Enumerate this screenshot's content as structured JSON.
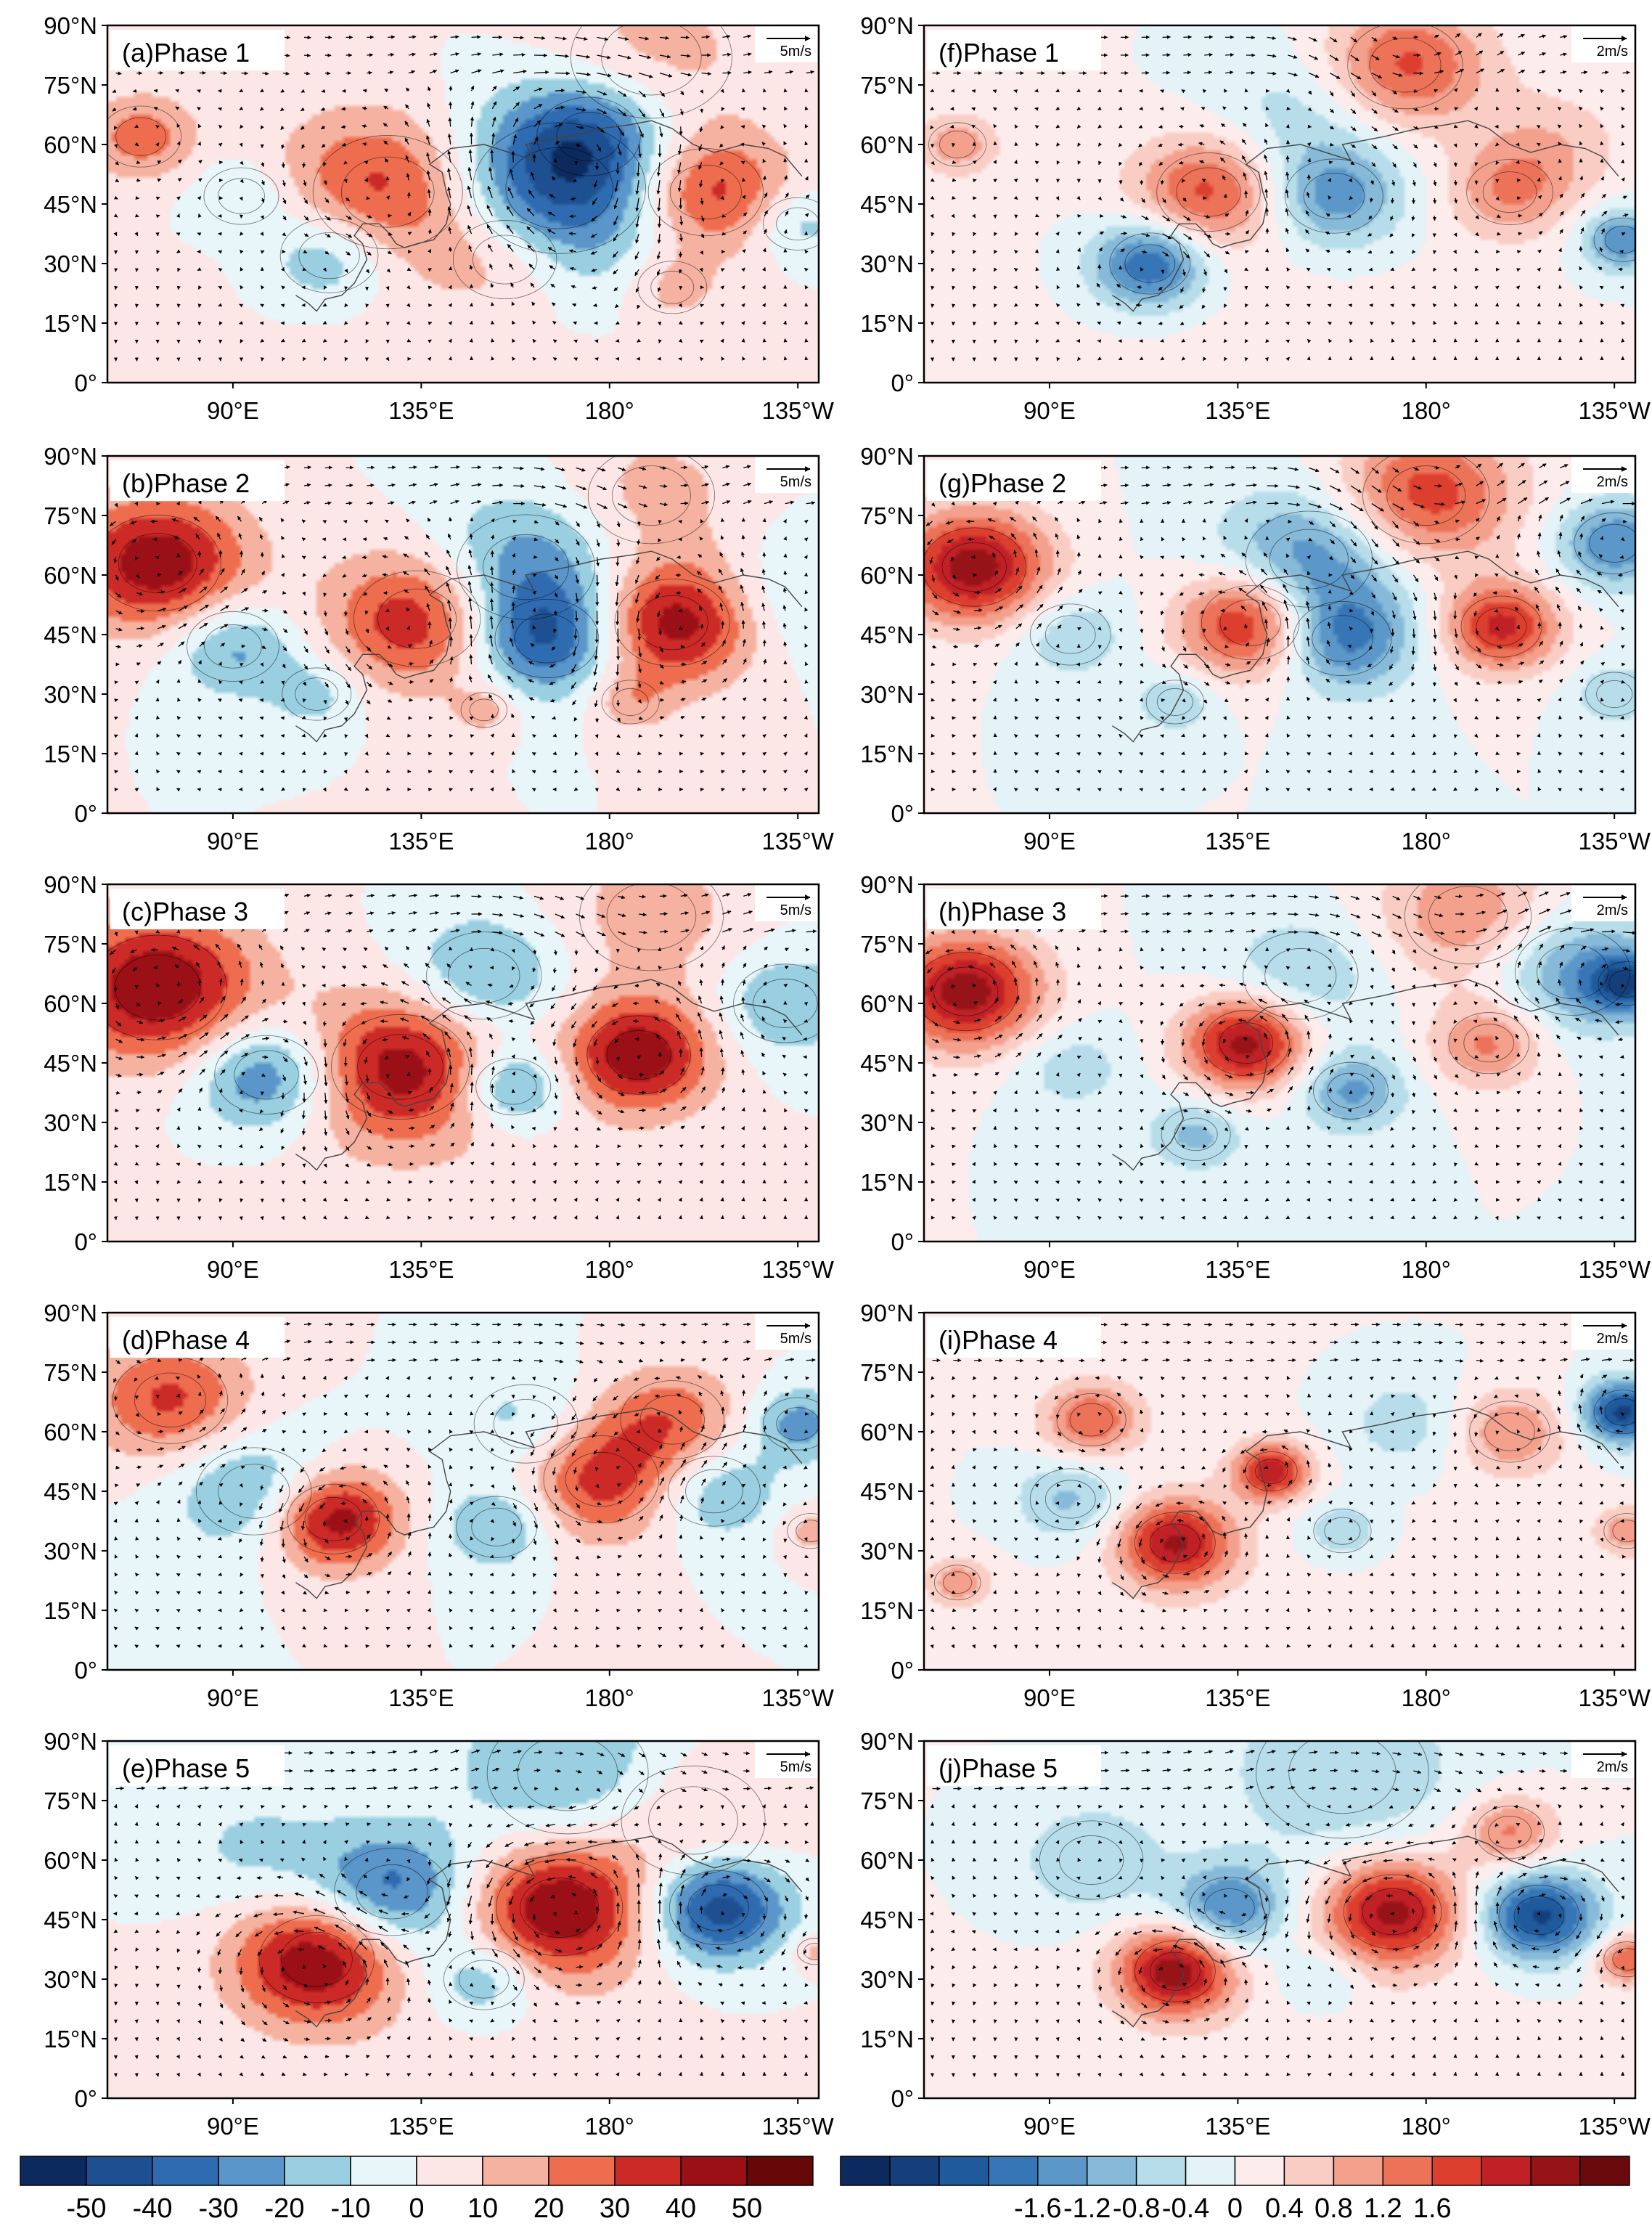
{
  "figure": {
    "columns": [
      {
        "vector_reference": "5m/s",
        "panels": [
          {
            "label": "(a)Phase 1"
          },
          {
            "label": "(b)Phase 2"
          },
          {
            "label": "(c)Phase 3"
          },
          {
            "label": "(d)Phase 4"
          },
          {
            "label": "(e)Phase 5"
          }
        ],
        "colorbar": {
          "colors": [
            "#0c2a5e",
            "#1d4f91",
            "#2f6bb0",
            "#5a96c9",
            "#99cfe0",
            "#e8f6fa",
            "#fde6e6",
            "#f6b2a0",
            "#ee6d4f",
            "#cc2a26",
            "#9b1016",
            "#660808"
          ],
          "tick_labels": [
            "-50",
            "-40",
            "-30",
            "-20",
            "-10",
            "0",
            "10",
            "20",
            "30",
            "40",
            "50"
          ]
        }
      },
      {
        "vector_reference": "2m/s",
        "panels": [
          {
            "label": "(f)Phase 1"
          },
          {
            "label": "(g)Phase 2"
          },
          {
            "label": "(h)Phase 3"
          },
          {
            "label": "(i)Phase 4"
          },
          {
            "label": "(j)Phase 5"
          }
        ],
        "colorbar": {
          "colors": [
            "#0c2a5e",
            "#153f7b",
            "#1f5a9c",
            "#3776b6",
            "#5b97c8",
            "#86bad8",
            "#b6dde9",
            "#e4f3f8",
            "#fdecec",
            "#f9cdc4",
            "#f3a08d",
            "#ec7258",
            "#dd3f2f",
            "#c02126",
            "#961318",
            "#6b0a0c"
          ],
          "tick_labels": [
            "-1.6",
            "-1.2",
            "-0.8",
            "-0.4",
            "0",
            "0.4",
            "0.8",
            "1.2",
            "1.6"
          ]
        }
      }
    ],
    "lat_labels": [
      "90°N",
      "75°N",
      "60°N",
      "45°N",
      "30°N",
      "15°N",
      "0°"
    ],
    "lon_labels": [
      "90°E",
      "135°E",
      "180°",
      "135°W"
    ],
    "anomaly_centers": {
      "col0": [
        [
          {
            "lon": 68,
            "lat": 62,
            "r": 14,
            "v": 0.5
          },
          {
            "lon": 92,
            "lat": 47,
            "r": 13,
            "v": -0.3
          },
          {
            "lon": 113,
            "lat": 32,
            "r": 17,
            "v": -0.55
          },
          {
            "lon": 127,
            "lat": 48,
            "r": 26,
            "v": 0.75
          },
          {
            "lon": 168,
            "lat": 49,
            "r": 30,
            "v": -0.95
          },
          {
            "lon": 203,
            "lat": 48,
            "r": 20,
            "v": 0.8
          },
          {
            "lon": 225,
            "lat": 40,
            "r": 12,
            "v": -0.35
          },
          {
            "lon": 155,
            "lat": 31,
            "r": 18,
            "v": 0.35
          },
          {
            "lon": 195,
            "lat": 24,
            "r": 12,
            "v": 0.3
          },
          {
            "lon": 190,
            "lat": 82,
            "r": 28,
            "v": 0.3
          },
          {
            "lon": 175,
            "lat": 62,
            "r": 18,
            "v": -0.45
          },
          {
            "lon": 140,
            "lat": 10,
            "r": 60,
            "v": 0.08
          }
        ],
        [
          {
            "lon": 72,
            "lat": 63,
            "r": 22,
            "v": 0.95
          },
          {
            "lon": 90,
            "lat": 42,
            "r": 16,
            "v": -0.5
          },
          {
            "lon": 134,
            "lat": 49,
            "r": 22,
            "v": 0.8
          },
          {
            "lon": 160,
            "lat": 62,
            "r": 24,
            "v": -0.55
          },
          {
            "lon": 165,
            "lat": 44,
            "r": 18,
            "v": -0.8
          },
          {
            "lon": 195,
            "lat": 48,
            "r": 20,
            "v": 0.95
          },
          {
            "lon": 190,
            "lat": 80,
            "r": 22,
            "v": 0.3
          },
          {
            "lon": 110,
            "lat": 30,
            "r": 12,
            "v": -0.3
          },
          {
            "lon": 150,
            "lat": 26,
            "r": 8,
            "v": 0.3
          },
          {
            "lon": 185,
            "lat": 28,
            "r": 10,
            "v": 0.3
          },
          {
            "lon": 225,
            "lat": 55,
            "r": 20,
            "v": -0.25
          }
        ],
        [
          {
            "lon": 72,
            "lat": 64,
            "r": 24,
            "v": 1.0
          },
          {
            "lon": 98,
            "lat": 42,
            "r": 18,
            "v": -0.7
          },
          {
            "lon": 130,
            "lat": 44,
            "r": 24,
            "v": 0.9
          },
          {
            "lon": 150,
            "lat": 67,
            "r": 20,
            "v": -0.5
          },
          {
            "lon": 157,
            "lat": 39,
            "r": 13,
            "v": -0.65
          },
          {
            "lon": 187,
            "lat": 47,
            "r": 18,
            "v": 0.95
          },
          {
            "lon": 190,
            "lat": 82,
            "r": 25,
            "v": 0.3
          },
          {
            "lon": 222,
            "lat": 60,
            "r": 18,
            "v": -0.4
          },
          {
            "lon": 140,
            "lat": 10,
            "r": 60,
            "v": 0.06
          }
        ],
        [
          {
            "lon": 75,
            "lat": 68,
            "r": 20,
            "v": 0.65
          },
          {
            "lon": 95,
            "lat": 45,
            "r": 20,
            "v": -0.5
          },
          {
            "lon": 114,
            "lat": 38,
            "r": 16,
            "v": 1.0
          },
          {
            "lon": 153,
            "lat": 36,
            "r": 14,
            "v": -0.45
          },
          {
            "lon": 160,
            "lat": 62,
            "r": 18,
            "v": -0.3
          },
          {
            "lon": 178,
            "lat": 48,
            "r": 20,
            "v": 0.7
          },
          {
            "lon": 195,
            "lat": 63,
            "r": 18,
            "v": 0.5
          },
          {
            "lon": 205,
            "lat": 45,
            "r": 16,
            "v": -0.45
          },
          {
            "lon": 225,
            "lat": 62,
            "r": 12,
            "v": -0.5
          },
          {
            "lon": 228,
            "lat": 35,
            "r": 8,
            "v": 0.3
          }
        ],
        [
          {
            "lon": 110,
            "lat": 35,
            "r": 20,
            "v": 1.0
          },
          {
            "lon": 128,
            "lat": 52,
            "r": 20,
            "v": -0.75
          },
          {
            "lon": 168,
            "lat": 48,
            "r": 22,
            "v": 1.0
          },
          {
            "lon": 206,
            "lat": 48,
            "r": 17,
            "v": -1.0
          },
          {
            "lon": 150,
            "lat": 30,
            "r": 14,
            "v": -0.45
          },
          {
            "lon": 170,
            "lat": 82,
            "r": 28,
            "v": -0.45
          },
          {
            "lon": 200,
            "lat": 70,
            "r": 25,
            "v": 0.3
          },
          {
            "lon": 95,
            "lat": 62,
            "r": 22,
            "v": -0.25
          },
          {
            "lon": 229,
            "lat": 37,
            "r": 6,
            "v": 0.3
          },
          {
            "lon": 140,
            "lat": 10,
            "r": 60,
            "v": 0.07
          }
        ]
      ],
      "col1": [
        [
          {
            "lon": 68,
            "lat": 60,
            "r": 10,
            "v": 0.4
          },
          {
            "lon": 128,
            "lat": 48,
            "r": 18,
            "v": 0.65
          },
          {
            "lon": 114,
            "lat": 30,
            "r": 14,
            "v": -0.8
          },
          {
            "lon": 158,
            "lat": 47,
            "r": 17,
            "v": -0.55
          },
          {
            "lon": 175,
            "lat": 80,
            "r": 20,
            "v": 0.65
          },
          {
            "lon": 200,
            "lat": 48,
            "r": 15,
            "v": 0.4
          },
          {
            "lon": 227,
            "lat": 36,
            "r": 10,
            "v": -0.6
          },
          {
            "lon": 150,
            "lat": 68,
            "r": 22,
            "v": -0.25
          },
          {
            "lon": 145,
            "lat": 8,
            "r": 60,
            "v": 0.06
          },
          {
            "lon": 210,
            "lat": 60,
            "r": 18,
            "v": 0.25
          }
        ],
        [
          {
            "lon": 72,
            "lat": 62,
            "r": 18,
            "v": 1.0
          },
          {
            "lon": 138,
            "lat": 48,
            "r": 17,
            "v": 0.9
          },
          {
            "lon": 160,
            "lat": 44,
            "r": 17,
            "v": -0.65
          },
          {
            "lon": 152,
            "lat": 64,
            "r": 22,
            "v": -0.6
          },
          {
            "lon": 198,
            "lat": 47,
            "r": 14,
            "v": 0.8
          },
          {
            "lon": 180,
            "lat": 80,
            "r": 22,
            "v": 0.7
          },
          {
            "lon": 225,
            "lat": 68,
            "r": 14,
            "v": -0.6
          },
          {
            "lon": 95,
            "lat": 45,
            "r": 14,
            "v": -0.3
          },
          {
            "lon": 120,
            "lat": 28,
            "r": 10,
            "v": -0.3
          },
          {
            "lon": 225,
            "lat": 30,
            "r": 10,
            "v": -0.3
          }
        ],
        [
          {
            "lon": 70,
            "lat": 63,
            "r": 18,
            "v": 1.0
          },
          {
            "lon": 137,
            "lat": 50,
            "r": 15,
            "v": 1.0
          },
          {
            "lon": 125,
            "lat": 27,
            "r": 12,
            "v": -0.35
          },
          {
            "lon": 162,
            "lat": 38,
            "r": 13,
            "v": -0.5
          },
          {
            "lon": 195,
            "lat": 50,
            "r": 14,
            "v": 0.5
          },
          {
            "lon": 190,
            "lat": 82,
            "r": 22,
            "v": 0.45
          },
          {
            "lon": 215,
            "lat": 68,
            "r": 20,
            "v": -0.5
          },
          {
            "lon": 228,
            "lat": 65,
            "r": 10,
            "v": -0.7
          },
          {
            "lon": 150,
            "lat": 67,
            "r": 20,
            "v": -0.3
          },
          {
            "lon": 95,
            "lat": 44,
            "r": 14,
            "v": -0.25
          }
        ],
        [
          {
            "lon": 120,
            "lat": 32,
            "r": 14,
            "v": 0.9
          },
          {
            "lon": 143,
            "lat": 50,
            "r": 9,
            "v": 0.85
          },
          {
            "lon": 100,
            "lat": 63,
            "r": 12,
            "v": 0.6
          },
          {
            "lon": 95,
            "lat": 43,
            "r": 14,
            "v": -0.35
          },
          {
            "lon": 200,
            "lat": 60,
            "r": 14,
            "v": 0.45
          },
          {
            "lon": 227,
            "lat": 65,
            "r": 10,
            "v": -0.95
          },
          {
            "lon": 228,
            "lat": 35,
            "r": 8,
            "v": 0.4
          },
          {
            "lon": 68,
            "lat": 22,
            "r": 8,
            "v": 0.4
          },
          {
            "lon": 160,
            "lat": 35,
            "r": 10,
            "v": -0.3
          },
          {
            "lon": 175,
            "lat": 62,
            "r": 16,
            "v": -0.25
          },
          {
            "lon": 150,
            "lat": 10,
            "r": 60,
            "v": 0.06
          }
        ],
        [
          {
            "lon": 120,
            "lat": 32,
            "r": 14,
            "v": 1.0
          },
          {
            "lon": 172,
            "lat": 47,
            "r": 17,
            "v": 0.95
          },
          {
            "lon": 207,
            "lat": 46,
            "r": 14,
            "v": -0.95
          },
          {
            "lon": 133,
            "lat": 48,
            "r": 14,
            "v": -0.65
          },
          {
            "lon": 160,
            "lat": 82,
            "r": 30,
            "v": -0.3
          },
          {
            "lon": 200,
            "lat": 67,
            "r": 12,
            "v": 0.5
          },
          {
            "lon": 100,
            "lat": 60,
            "r": 18,
            "v": -0.3
          },
          {
            "lon": 228,
            "lat": 35,
            "r": 8,
            "v": 0.6
          },
          {
            "lon": 155,
            "lat": 30,
            "r": 10,
            "v": -0.25
          },
          {
            "lon": 150,
            "lat": 10,
            "r": 60,
            "v": 0.06
          }
        ]
      ]
    }
  }
}
